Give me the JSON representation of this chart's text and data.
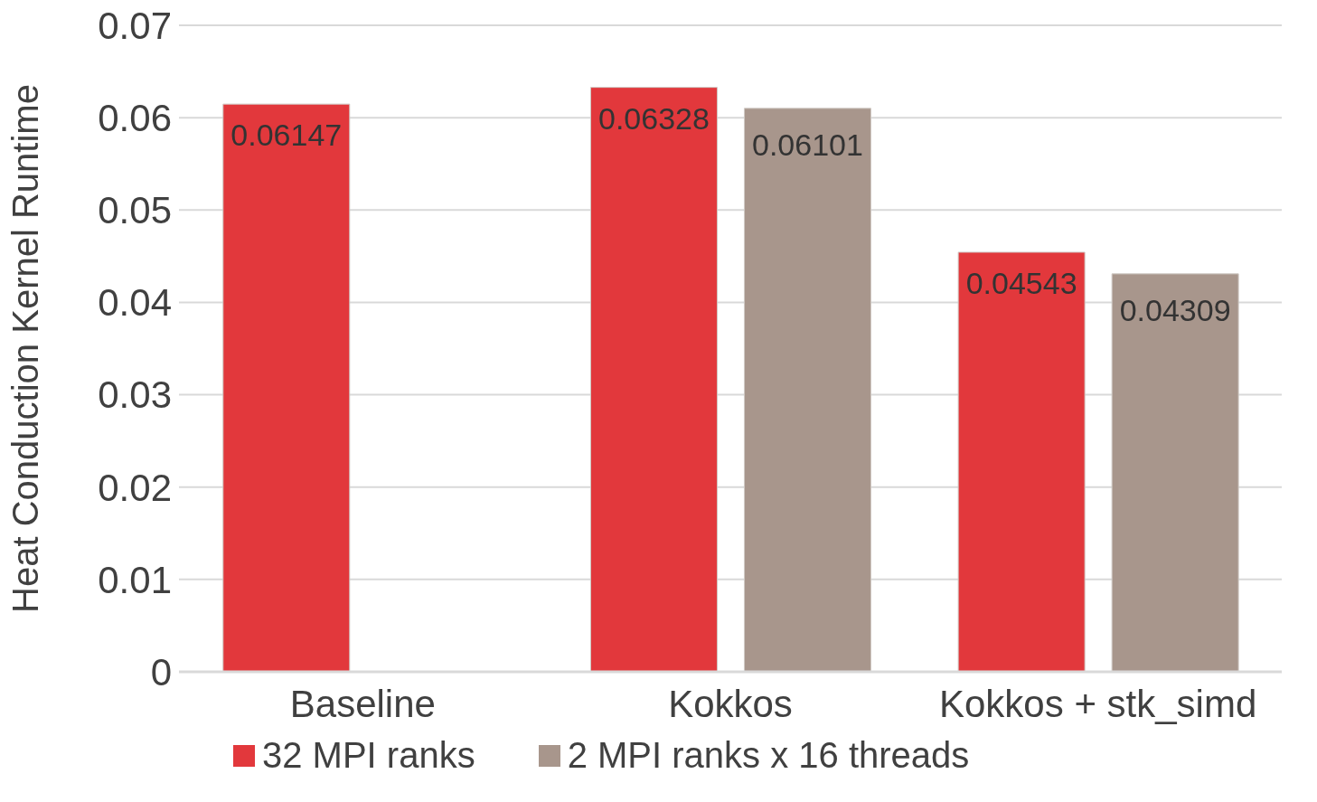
{
  "chart_data": {
    "type": "bar",
    "ylabel": "Heat Conduction Kernel Runtime",
    "categories": [
      "Baseline",
      "Kokkos",
      "Kokkos + stk_simd"
    ],
    "series": [
      {
        "name": "32 MPI ranks",
        "color": "#e2383c",
        "values": [
          0.06147,
          0.06328,
          0.04543
        ]
      },
      {
        "name": "2 MPI ranks x 16 threads",
        "color": "#a8968c",
        "values": [
          null,
          0.06101,
          0.04309
        ]
      }
    ],
    "ylim": [
      0,
      0.07
    ],
    "yticks": [
      0,
      0.01,
      0.02,
      0.03,
      0.04,
      0.05,
      0.06,
      0.07
    ],
    "grid": "y",
    "legend": "bottom",
    "data_labels": true
  }
}
